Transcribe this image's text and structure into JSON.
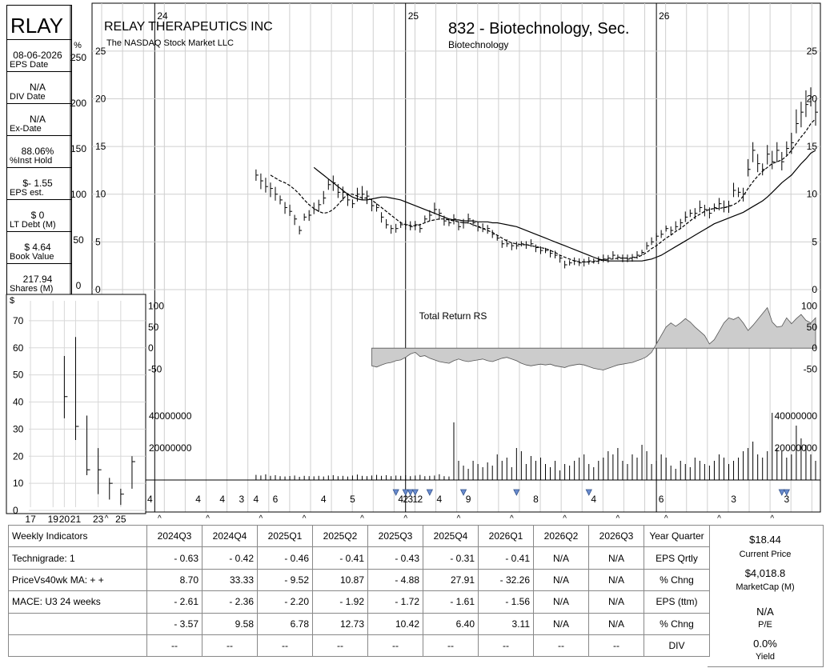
{
  "header": {
    "ticker": "RLAY",
    "company": "RELAY THERAPEUTICS INC",
    "exchange": "The NASDAQ Stock Market LLC",
    "group": "832 - Biotechnology, Sec.",
    "sector": "Biotechnology"
  },
  "sidebar": {
    "pct_symbol": "%",
    "items": [
      {
        "value": "08-06-2026",
        "label": "EPS Date"
      },
      {
        "value": "N/A",
        "label": "DIV Date"
      },
      {
        "value": "N/A",
        "label": "Ex-Date"
      },
      {
        "value": "88.06%",
        "label": "%Inst Hold"
      },
      {
        "value": "$- 1.55",
        "label": "EPS est."
      },
      {
        "value": "$ 0",
        "label": "LT Debt (M)"
      },
      {
        "value": "$ 4.64",
        "label": "Book Value"
      },
      {
        "value": "217.94",
        "label": "Shares (M)"
      }
    ],
    "pct_ticks": [
      "250",
      "200",
      "150",
      "100",
      "50",
      "0"
    ]
  },
  "chart_data": [
    {
      "type": "line",
      "name": "price",
      "x_labels": [
        {
          "week": 12,
          "text": "24"
        },
        {
          "week": 64,
          "text": "25"
        },
        {
          "week": 116,
          "text": "26"
        }
      ],
      "ylim": [
        0,
        27
      ],
      "y_ticks": [
        "25",
        "20",
        "15",
        "10",
        "5",
        "0"
      ],
      "close": [
        12,
        11.4,
        10.8,
        10.6,
        10.0,
        9.4,
        8.6,
        8.2,
        7.4,
        6.2,
        7.6,
        7.8,
        8.4,
        8.9,
        9.6,
        11.0,
        11.2,
        10.2,
        10.2,
        9.4,
        9.0,
        10.0,
        10.0,
        9.8,
        8.8,
        8.6,
        7.6,
        6.8,
        6.4,
        6.4,
        6.8,
        6.8,
        6.6,
        6.8,
        6.4,
        7.4,
        7.8,
        8.4,
        8.0,
        7.2,
        7.0,
        7.4,
        6.6,
        7.0,
        7.4,
        7.0,
        6.6,
        6.4,
        6.4,
        5.8,
        5.4,
        4.8,
        4.8,
        4.6,
        4.6,
        4.8,
        4.7,
        4.8,
        4.4,
        4.1,
        4.1,
        3.8,
        3.6,
        3.3,
        2.6,
        2.8,
        3.0,
        2.8,
        2.9,
        3.0,
        3.0,
        3.1,
        3.2,
        3.3,
        3.6,
        3.4,
        3.3,
        3.2,
        3.4,
        3.6,
        3.9,
        4.6,
        5.0,
        5.6,
        5.8,
        6.4,
        6.2,
        6.6,
        7.0,
        7.6,
        8.0,
        8.0,
        8.6,
        8.4,
        8.0,
        8.6,
        9.0,
        8.6,
        8.8,
        10.4,
        10.2,
        10.0,
        12.6,
        14.6,
        13.2,
        12.6,
        14.2,
        13.4,
        14.6,
        13.4,
        14.8,
        15.4,
        17.4,
        18.6,
        19.4,
        20.2,
        18.6
      ],
      "ma10": [
        12.0,
        11.7,
        11.4,
        11.2,
        10.9,
        10.5,
        10.0,
        9.4,
        8.9,
        8.5,
        8.2,
        8.0,
        8.1,
        8.4,
        8.9,
        9.5,
        10.0,
        10.0,
        9.8,
        9.6,
        9.6,
        9.4,
        9.0,
        8.6,
        8.2,
        7.8,
        7.4,
        7.0,
        6.8,
        6.7,
        6.7,
        6.8,
        7.0,
        7.2,
        7.3,
        7.4,
        7.4,
        7.3,
        7.2,
        7.1,
        7.0,
        7.0,
        6.8,
        6.6,
        6.4,
        6.2,
        6.0,
        5.7,
        5.4,
        5.1,
        4.9,
        4.8,
        4.7,
        4.7,
        4.6,
        4.5,
        4.4,
        4.3,
        4.1,
        3.9,
        3.6,
        3.4,
        3.2,
        3.0,
        2.9,
        2.9,
        2.9,
        2.9,
        3.0,
        3.1,
        3.2,
        3.2,
        3.3,
        3.3,
        3.3,
        3.3,
        3.4,
        3.6,
        3.9,
        4.3,
        4.6,
        5.0,
        5.4,
        5.7,
        6.1,
        6.4,
        6.8,
        7.2,
        7.6,
        7.9,
        8.2,
        8.4,
        8.5,
        8.5,
        8.6,
        8.7,
        8.9,
        9.2,
        9.8,
        10.6,
        11.3,
        11.9,
        12.4,
        12.8,
        13.2,
        13.4,
        13.6,
        14.0,
        14.6,
        15.3,
        16.0,
        16.6,
        17.4,
        17.9
      ],
      "ma40": [
        12.8,
        12.4,
        12.0,
        11.6,
        11.2,
        10.8,
        10.4,
        10.0,
        9.7,
        9.5,
        9.4,
        9.4,
        9.5,
        9.6,
        9.7,
        9.7,
        9.6,
        9.5,
        9.4,
        9.2,
        9.0,
        8.8,
        8.6,
        8.4,
        8.2,
        8.0,
        7.8,
        7.6,
        7.4,
        7.3,
        7.3,
        7.2,
        7.2,
        7.2,
        7.1,
        7.1,
        7.1,
        7.0,
        7.0,
        6.9,
        6.8,
        6.7,
        6.6,
        6.4,
        6.2,
        6.0,
        5.8,
        5.6,
        5.4,
        5.2,
        5.0,
        4.8,
        4.6,
        4.4,
        4.2,
        4.0,
        3.8,
        3.6,
        3.4,
        3.2,
        3.1,
        3.0,
        3.0,
        3.0,
        3.0,
        3.0,
        3.0,
        3.0,
        3.0,
        3.1,
        3.2,
        3.4,
        3.6,
        3.9,
        4.2,
        4.5,
        4.8,
        5.1,
        5.4,
        5.7,
        6.0,
        6.3,
        6.6,
        6.9,
        7.1,
        7.3,
        7.5,
        7.7,
        7.9,
        8.1,
        8.4,
        8.7,
        9.0,
        9.3,
        9.7,
        10.2,
        10.7,
        11.2,
        11.6,
        12.0,
        12.6,
        13.2,
        13.7,
        14.3,
        14.6
      ]
    },
    {
      "type": "area",
      "title": "Total Return RS",
      "ylim": [
        -70,
        120
      ],
      "y_ticks": [
        "100",
        "50",
        "0",
        "-50"
      ],
      "values": [
        -42,
        -45,
        -40,
        -36,
        -34,
        -30,
        -28,
        -22,
        -14,
        -10,
        -20,
        -18,
        -24,
        -28,
        -32,
        -34,
        -36,
        -30,
        -26,
        -30,
        -32,
        -30,
        -28,
        -26,
        -30,
        -32,
        -28,
        -24,
        -22,
        -26,
        -30,
        -36,
        -40,
        -42,
        -40,
        -38,
        -40,
        -38,
        -42,
        -44,
        -46,
        -42,
        -40,
        -38,
        -40,
        -44,
        -48,
        -50,
        -52,
        -48,
        -44,
        -40,
        -38,
        -36,
        -34,
        -30,
        -26,
        -20,
        -10,
        10,
        30,
        50,
        60,
        52,
        60,
        70,
        62,
        50,
        40,
        30,
        10,
        20,
        40,
        60,
        72,
        68,
        74,
        60,
        42,
        54,
        68,
        82,
        96,
        62,
        50,
        52,
        72,
        58,
        70,
        80,
        66,
        60,
        72
      ],
      "x_range": [
        56,
        117
      ]
    },
    {
      "type": "bar",
      "name": "volume",
      "ylim": [
        0,
        50000000
      ],
      "y_ticks": [
        "40000000",
        "20000000"
      ],
      "values": [
        3200000,
        2800000,
        3500000,
        2600000,
        3000000,
        2400000,
        2200000,
        2500000,
        2800000,
        2000000,
        2600000,
        2400000,
        2300000,
        2600000,
        2200000,
        2800000,
        3000000,
        2400000,
        2600000,
        2200000,
        2800000,
        3400000,
        2600000,
        2400000,
        2800000,
        3200000,
        2600000,
        3000000,
        2400000,
        2800000,
        2600000,
        3000000,
        2400000,
        2800000,
        3200000,
        2400000,
        2600000,
        2800000,
        3600000,
        2400000,
        2200000,
        36000000,
        12000000,
        9000000,
        7000000,
        12000000,
        10000000,
        8000000,
        11000000,
        9000000,
        16000000,
        12000000,
        14000000,
        8000000,
        20000000,
        18000000,
        10000000,
        15000000,
        12000000,
        14000000,
        10000000,
        8000000,
        12000000,
        6000000,
        10000000,
        9000000,
        12000000,
        14000000,
        16000000,
        10000000,
        8000000,
        12000000,
        14000000,
        18000000,
        16000000,
        20000000,
        12000000,
        10000000,
        16000000,
        14000000,
        22000000,
        18000000,
        10000000,
        12000000,
        16000000,
        14000000,
        9000000,
        7000000,
        12000000,
        10000000,
        8000000,
        14000000,
        12000000,
        10000000,
        9000000,
        12000000,
        16000000,
        14000000,
        10000000,
        12000000,
        14000000,
        18000000,
        20000000,
        24000000,
        16000000,
        14000000,
        18000000,
        42000000,
        20000000,
        18000000,
        14000000,
        16000000,
        34000000,
        26000000,
        22000000,
        16000000,
        12000000
      ]
    }
  ],
  "eps_markers": {
    "labels": [
      {
        "week": 0,
        "text": "4"
      },
      {
        "week": 5,
        "text": "4"
      },
      {
        "week": 11,
        "text": "4"
      },
      {
        "week": 21,
        "text": "4"
      },
      {
        "week": 26,
        "text": "4"
      },
      {
        "week": 30,
        "text": "3"
      },
      {
        "week": 33,
        "text": "4"
      },
      {
        "week": 37,
        "text": "6"
      },
      {
        "week": 47,
        "text": "4"
      },
      {
        "week": 53,
        "text": "5"
      },
      {
        "week": 63,
        "text": "4"
      },
      {
        "week": 64,
        "text": "2"
      },
      {
        "week": 65,
        "text": "3"
      },
      {
        "week": 66,
        "text": "1"
      },
      {
        "week": 67,
        "text": "2"
      },
      {
        "week": 71,
        "text": "4"
      },
      {
        "week": 77,
        "text": "9"
      },
      {
        "week": 91,
        "text": "8"
      },
      {
        "week": 103,
        "text": "4"
      },
      {
        "week": 117,
        "text": "6"
      },
      {
        "week": 132,
        "text": "3"
      },
      {
        "week": 143,
        "text": "3"
      }
    ],
    "triangles": [
      62,
      64,
      65,
      66,
      69,
      76,
      87,
      102,
      142,
      143
    ],
    "carets": [
      2,
      13,
      23,
      34,
      43,
      55,
      64,
      75,
      86,
      97,
      108,
      118,
      129,
      140
    ]
  },
  "inset_chart": {
    "type": "bar",
    "y_label": "$",
    "y_ticks": [
      "70",
      "60",
      "50",
      "40",
      "30",
      "20",
      "10",
      "0"
    ],
    "x_labels": [
      "17",
      "19",
      "20",
      "21",
      "23",
      "25"
    ],
    "x_label_positions": [
      17,
      19,
      20,
      21,
      23,
      25
    ],
    "ylim": [
      0,
      75
    ],
    "bars": [
      {
        "x": 20,
        "high": 57,
        "low": 34,
        "close": 42
      },
      {
        "x": 21,
        "high": 64,
        "low": 26,
        "close": 31
      },
      {
        "x": 22,
        "high": 35,
        "low": 13,
        "close": 15
      },
      {
        "x": 23,
        "high": 23,
        "low": 6,
        "close": 15
      },
      {
        "x": 24,
        "high": 12,
        "low": 4,
        "close": 10
      },
      {
        "x": 25,
        "high": 8,
        "low": 2,
        "close": 6
      },
      {
        "x": 26,
        "high": 20,
        "low": 8,
        "close": 18
      }
    ]
  },
  "table": {
    "header": [
      "Weekly Indicators",
      "2024Q3",
      "2024Q4",
      "2025Q1",
      "2025Q2",
      "2025Q3",
      "2025Q4",
      "2026Q1",
      "2026Q2",
      "2026Q3",
      "Year Quarter"
    ],
    "rows": [
      [
        "Technigrade: 1",
        "- 0.63",
        "- 0.42",
        "- 0.46",
        "- 0.41",
        "- 0.43",
        "- 0.31",
        "- 0.41",
        "N/A",
        "N/A",
        "EPS Qrtly"
      ],
      [
        "PriceVs40wk MA:  + +",
        "8.70",
        "33.33",
        "- 9.52",
        "10.87",
        "- 4.88",
        "27.91",
        "- 32.26",
        "N/A",
        "N/A",
        "% Chng"
      ],
      [
        "MACE: U3  24 weeks",
        "- 2.61",
        "- 2.36",
        "- 2.20",
        "- 1.92",
        "- 1.72",
        "- 1.61",
        "- 1.56",
        "N/A",
        "N/A",
        "EPS (ttm)"
      ],
      [
        "",
        "- 3.57",
        "9.58",
        "6.78",
        "12.73",
        "10.42",
        "6.40",
        "3.11",
        "N/A",
        "N/A",
        "% Chng"
      ],
      [
        "",
        "--",
        "--",
        "--",
        "--",
        "--",
        "--",
        "--",
        "--",
        "--",
        "DIV"
      ]
    ]
  },
  "summary": {
    "price": "$18.44",
    "price_label": "Current Price",
    "mcap": "$4,018.8",
    "mcap_label": "MarketCap (M)",
    "pe": "N/A",
    "pe_label": "P/E",
    "yield": "0.0%",
    "yield_label": "Yield"
  }
}
